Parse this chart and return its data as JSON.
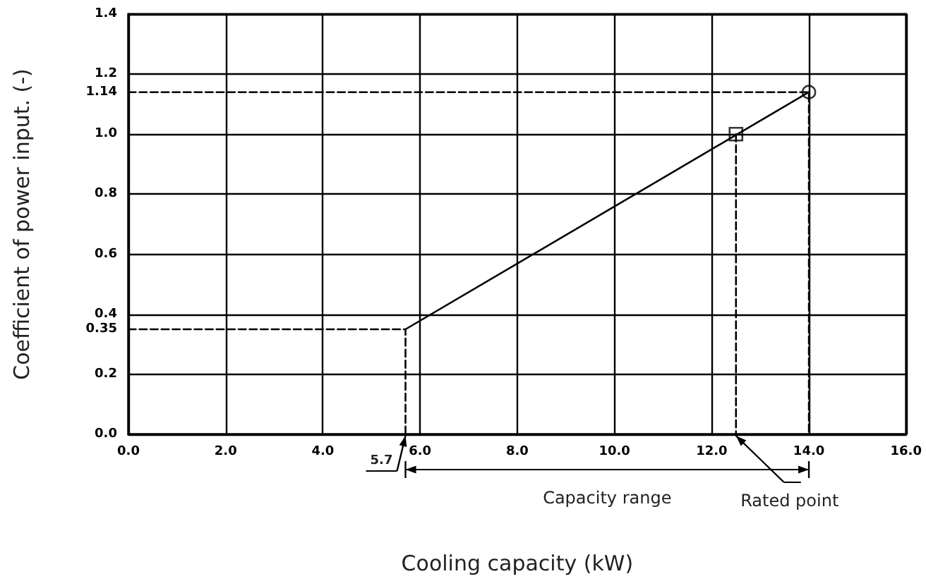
{
  "chart_data": {
    "type": "line",
    "xlabel": "Cooling capacity (kW)",
    "ylabel": "Coefficient of power input. (-)",
    "xlim": [
      0,
      16
    ],
    "xticks": [
      {
        "value": 0,
        "label": "0.0"
      },
      {
        "value": 2,
        "label": "2.0"
      },
      {
        "value": 4,
        "label": "4.0"
      },
      {
        "value": 6,
        "label": "6.0"
      },
      {
        "value": 8,
        "label": "8.0"
      },
      {
        "value": 10,
        "label": "10.0"
      },
      {
        "value": 12,
        "label": "12.0"
      },
      {
        "value": 14,
        "label": "14.0"
      },
      {
        "value": 16,
        "label": "16.0"
      }
    ],
    "ylim": [
      0,
      1.4
    ],
    "yticks": [
      {
        "value": 0,
        "label": "0.0"
      },
      0.2,
      0.35,
      0.4,
      0.6,
      0.8,
      {
        "value": 1,
        "label": "1.0"
      },
      1.14,
      1.2,
      1.4
    ],
    "grid": true,
    "series": [
      {
        "color": "#000000",
        "x": [
          5.7,
          14
        ],
        "values": [
          0.35,
          1.14
        ],
        "marker": "none",
        "line_style": "solid"
      },
      {
        "color": "#000000",
        "x": [
          0,
          5.7,
          5.7
        ],
        "values": [
          0.35,
          0.35,
          0
        ],
        "marker": "none",
        "line_style": "dashed"
      },
      {
        "color": "#000000",
        "x": [
          0,
          14,
          14
        ],
        "values": [
          1.14,
          1.14,
          0
        ],
        "marker": "none",
        "line_style": "dashed"
      },
      {
        "color": "#000000",
        "x": [
          12.5,
          12.5
        ],
        "values": [
          1.0,
          0
        ],
        "marker": "none",
        "line_style": "dashed"
      },
      {
        "type": "scatter",
        "color": "#000000",
        "x": [
          12.5
        ],
        "values": [
          1.0
        ],
        "marker": "square"
      },
      {
        "type": "scatter",
        "color": "#000000",
        "x": [
          14
        ],
        "values": [
          1.14
        ],
        "marker": "circle"
      }
    ],
    "annotations": [
      {
        "text": "5.7",
        "x": 5.7,
        "y": 0
      },
      "Capacity range",
      {
        "text": "Rated point",
        "x": 12.5,
        "y": 0
      }
    ]
  }
}
